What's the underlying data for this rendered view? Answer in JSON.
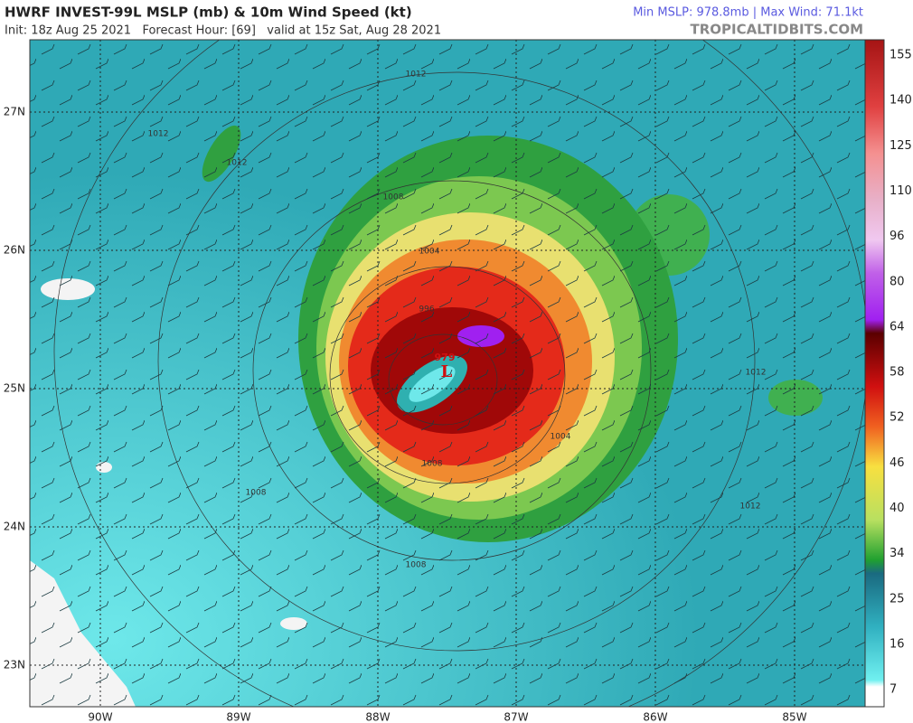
{
  "header": {
    "title": "HWRF INVEST-99L MSLP (mb) & 10m Wind Speed (kt)",
    "subtitle": "Init: 18z Aug 25 2021   Forecast Hour: [69]   valid at 15z Sat, Aug 28 2021",
    "stats": "Min MSLP: 978.8mb | Max Wind: 71.1kt",
    "site": "TROPICALTIDBITS.COM"
  },
  "map": {
    "latitude_labels": [
      "27N",
      "26N",
      "25N",
      "24N",
      "23N"
    ],
    "longitude_labels": [
      "90W",
      "89W",
      "88W",
      "87W",
      "86W",
      "85W"
    ],
    "contour_labels": [
      "1012",
      "1012",
      "1012",
      "1008",
      "1004",
      "996",
      "1004",
      "1008",
      "1008",
      "1012",
      "1012",
      "1008"
    ],
    "center_pressure": "979",
    "low_marker": "L"
  },
  "colorbar": {
    "labels": [
      "155",
      "140",
      "125",
      "110",
      "96",
      "80",
      "64",
      "58",
      "52",
      "46",
      "40",
      "34",
      "25",
      "16",
      "7"
    ]
  }
}
